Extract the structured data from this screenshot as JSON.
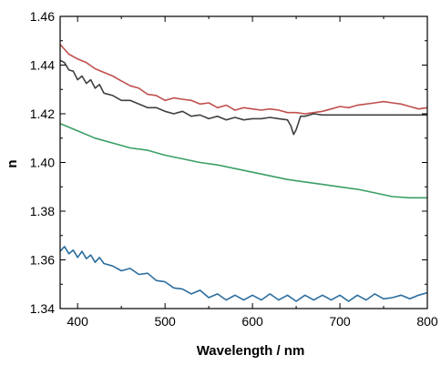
{
  "chart_data": {
    "type": "line",
    "title": "",
    "xlabel": "Wavelength / nm",
    "ylabel": "n",
    "xlim": [
      380,
      800
    ],
    "ylim": [
      1.34,
      1.46
    ],
    "xticks": [
      "400",
      "500",
      "600",
      "700",
      "800"
    ],
    "yticks": [
      "1.34",
      "1.36",
      "1.38",
      "1.40",
      "1.42",
      "1.44",
      "1.46"
    ],
    "grid": false,
    "legend": "none",
    "series": [
      {
        "color": "#c0504d",
        "x": [
          380,
          385,
          390,
          400,
          410,
          420,
          430,
          440,
          450,
          460,
          470,
          480,
          490,
          500,
          510,
          520,
          530,
          540,
          550,
          560,
          570,
          580,
          590,
          600,
          610,
          620,
          630,
          640,
          650,
          660,
          670,
          680,
          690,
          700,
          710,
          720,
          730,
          740,
          750,
          760,
          770,
          780,
          790,
          800
        ],
        "y": [
          1.4485,
          1.4465,
          1.4445,
          1.4425,
          1.441,
          1.4385,
          1.437,
          1.4355,
          1.4335,
          1.4315,
          1.4305,
          1.428,
          1.4275,
          1.4255,
          1.4265,
          1.426,
          1.4255,
          1.424,
          1.4245,
          1.4225,
          1.4235,
          1.4215,
          1.4225,
          1.422,
          1.4215,
          1.422,
          1.4215,
          1.4205,
          1.4205,
          1.42,
          1.4205,
          1.421,
          1.422,
          1.423,
          1.4225,
          1.4235,
          1.424,
          1.4245,
          1.425,
          1.4245,
          1.424,
          1.423,
          1.422,
          1.4225
        ]
      },
      {
        "color": "#404040",
        "x": [
          380,
          385,
          390,
          395,
          400,
          405,
          410,
          415,
          420,
          425,
          430,
          440,
          450,
          460,
          470,
          480,
          490,
          500,
          510,
          520,
          530,
          540,
          550,
          560,
          570,
          580,
          590,
          600,
          610,
          620,
          630,
          640,
          644,
          647,
          650,
          655,
          660,
          670,
          680,
          690,
          700,
          720,
          740,
          760,
          780,
          800
        ],
        "y": [
          1.442,
          1.441,
          1.438,
          1.4375,
          1.434,
          1.4355,
          1.4325,
          1.434,
          1.4305,
          1.432,
          1.4285,
          1.4275,
          1.4255,
          1.4255,
          1.424,
          1.4225,
          1.4225,
          1.421,
          1.42,
          1.421,
          1.419,
          1.4195,
          1.418,
          1.419,
          1.4175,
          1.4185,
          1.4175,
          1.418,
          1.418,
          1.4185,
          1.418,
          1.4175,
          1.415,
          1.4115,
          1.4135,
          1.419,
          1.419,
          1.42,
          1.4195,
          1.4195,
          1.4195,
          1.4195,
          1.4195,
          1.4195,
          1.4195,
          1.4195
        ]
      },
      {
        "color": "#3a9f66",
        "x": [
          380,
          400,
          420,
          440,
          460,
          480,
          500,
          520,
          540,
          560,
          580,
          600,
          620,
          640,
          660,
          680,
          700,
          720,
          740,
          760,
          780,
          800
        ],
        "y": [
          1.416,
          1.413,
          1.41,
          1.408,
          1.406,
          1.405,
          1.403,
          1.4015,
          1.4,
          1.399,
          1.3975,
          1.396,
          1.3945,
          1.393,
          1.392,
          1.391,
          1.39,
          1.389,
          1.3875,
          1.386,
          1.3855,
          1.3855
        ]
      },
      {
        "color": "#2b6d9e",
        "x": [
          380,
          385,
          390,
          395,
          400,
          405,
          410,
          415,
          420,
          425,
          430,
          440,
          450,
          460,
          470,
          480,
          490,
          500,
          510,
          520,
          530,
          540,
          550,
          560,
          570,
          580,
          590,
          600,
          610,
          620,
          630,
          640,
          650,
          660,
          670,
          680,
          690,
          700,
          710,
          720,
          730,
          740,
          750,
          760,
          770,
          780,
          790,
          800
        ],
        "y": [
          1.3635,
          1.3655,
          1.3625,
          1.364,
          1.361,
          1.3635,
          1.3605,
          1.362,
          1.359,
          1.361,
          1.3585,
          1.3575,
          1.3555,
          1.3565,
          1.354,
          1.3545,
          1.3515,
          1.351,
          1.3485,
          1.348,
          1.346,
          1.3475,
          1.3445,
          1.346,
          1.3435,
          1.3455,
          1.3435,
          1.3455,
          1.3435,
          1.346,
          1.3435,
          1.3455,
          1.343,
          1.3455,
          1.3435,
          1.3455,
          1.3435,
          1.3455,
          1.343,
          1.3455,
          1.3435,
          1.346,
          1.344,
          1.3445,
          1.3455,
          1.344,
          1.3455,
          1.3465
        ]
      }
    ]
  }
}
